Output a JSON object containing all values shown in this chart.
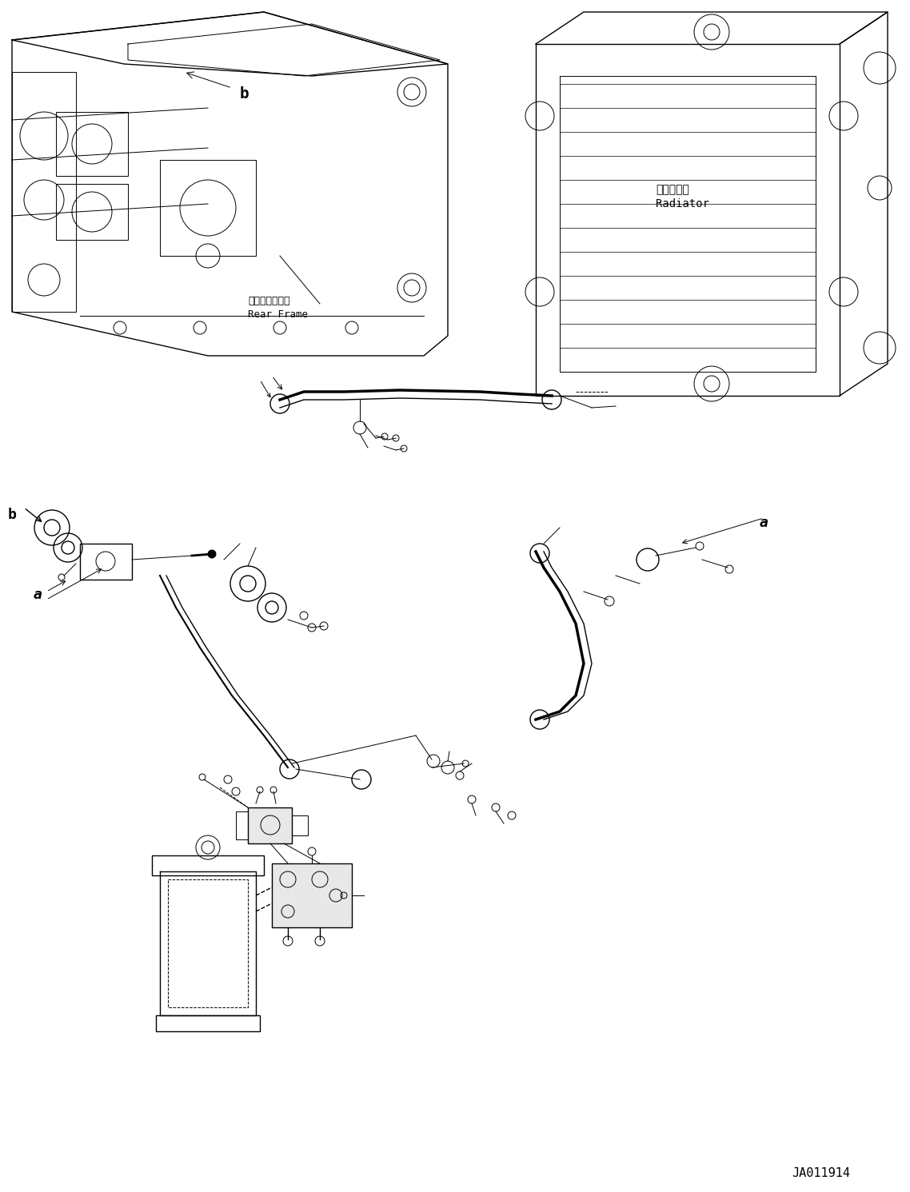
{
  "title": "",
  "figure_id": "JA011914",
  "background_color": "#ffffff",
  "line_color": "#000000",
  "labels": {
    "rear_frame_jp": "リヤーフレーム",
    "rear_frame_en": "Rear Frame",
    "radiator_jp": "ラジエータ",
    "radiator_en": "Radiator",
    "label_b": "b",
    "label_a": "a"
  },
  "figsize": [
    11.38,
    14.91
  ],
  "dpi": 100
}
